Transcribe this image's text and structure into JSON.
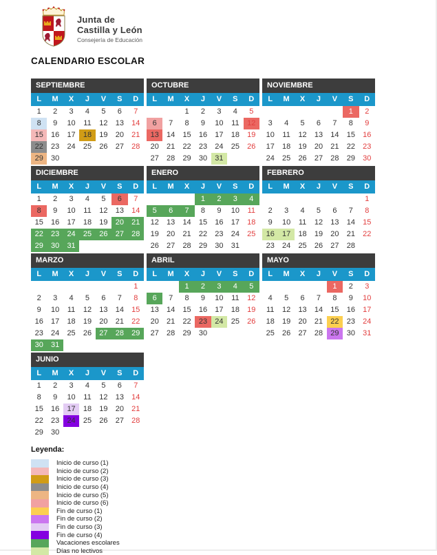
{
  "header": {
    "org_line1": "Junta de",
    "org_line2": "Castilla y León",
    "org_subtitle": "Consejería de Educación",
    "page_title": "CALENDARIO ESCOLAR"
  },
  "colors": {
    "month_header_bg": "#3d3d3d",
    "weekday_bg": "#1b97ca",
    "day_text": "#333333",
    "sunday_text": "#e23d3d",
    "inicio1": "#cfe2f3",
    "inicio2": "#f4b8b8",
    "inicio3": "#d19c16",
    "inicio4": "#8c8c8c",
    "inicio5": "#edb583",
    "inicio6": "#f1a1a1",
    "fin1": "#fccf50",
    "fin2": "#cb76ef",
    "fin3": "#e3ccf4",
    "fin4": "#8400e0",
    "vacaciones": "#57a65a",
    "nolectivos": "#d3e8a5",
    "festivo": "#eb6862"
  },
  "calendar": {
    "weekday_labels": [
      "L",
      "M",
      "X",
      "J",
      "V",
      "S",
      "D"
    ],
    "months": [
      {
        "name": "SEPTIEMBRE",
        "weeks": [
          [
            1,
            2,
            3,
            4,
            5,
            6,
            7
          ],
          [
            {
              "d": 8,
              "bg": "inicio1"
            },
            9,
            10,
            11,
            12,
            13,
            14
          ],
          [
            {
              "d": 15,
              "bg": "inicio2"
            },
            16,
            17,
            {
              "d": 18,
              "bg": "inicio3"
            },
            19,
            20,
            21
          ],
          [
            {
              "d": 22,
              "bg": "inicio4"
            },
            23,
            24,
            25,
            26,
            27,
            28
          ],
          [
            {
              "d": 29,
              "bg": "inicio5"
            },
            30,
            0,
            0,
            0,
            0,
            0
          ]
        ]
      },
      {
        "name": "OCTUBRE",
        "weeks": [
          [
            0,
            0,
            1,
            2,
            3,
            4,
            5
          ],
          [
            {
              "d": 6,
              "bg": "inicio6"
            },
            7,
            8,
            9,
            10,
            11,
            {
              "d": 12,
              "bg": "festivo"
            }
          ],
          [
            {
              "d": 13,
              "bg": "festivo"
            },
            14,
            15,
            16,
            17,
            18,
            19
          ],
          [
            20,
            21,
            22,
            23,
            24,
            25,
            26
          ],
          [
            27,
            28,
            29,
            30,
            {
              "d": 31,
              "bg": "nolectivos"
            },
            0,
            0
          ]
        ]
      },
      {
        "name": "NOVIEMBRE",
        "weeks": [
          [
            0,
            0,
            0,
            0,
            0,
            {
              "d": 1,
              "bg": "festivo",
              "fg": "#ffffff"
            },
            2
          ],
          [
            3,
            4,
            5,
            6,
            7,
            8,
            9
          ],
          [
            10,
            11,
            12,
            13,
            14,
            15,
            16
          ],
          [
            17,
            18,
            19,
            20,
            21,
            22,
            23
          ],
          [
            24,
            25,
            26,
            27,
            28,
            29,
            30
          ]
        ]
      },
      {
        "name": "DICIEMBRE",
        "weeks": [
          [
            1,
            2,
            3,
            4,
            5,
            {
              "d": 6,
              "bg": "festivo"
            },
            7
          ],
          [
            {
              "d": 8,
              "bg": "festivo"
            },
            9,
            10,
            11,
            12,
            13,
            14
          ],
          [
            15,
            16,
            17,
            18,
            19,
            {
              "d": 20,
              "bg": "vacaciones",
              "fg": "#ffffff"
            },
            {
              "d": 21,
              "bg": "vacaciones",
              "fg": "#ffffff"
            }
          ],
          [
            {
              "d": 22,
              "bg": "vacaciones",
              "fg": "#ffffff"
            },
            {
              "d": 23,
              "bg": "vacaciones",
              "fg": "#ffffff"
            },
            {
              "d": 24,
              "bg": "vacaciones",
              "fg": "#ffffff"
            },
            {
              "d": 25,
              "bg": "vacaciones",
              "fg": "#ffffff"
            },
            {
              "d": 26,
              "bg": "vacaciones",
              "fg": "#ffffff"
            },
            {
              "d": 27,
              "bg": "vacaciones",
              "fg": "#ffffff"
            },
            {
              "d": 28,
              "bg": "vacaciones",
              "fg": "#ffffff"
            }
          ],
          [
            {
              "d": 29,
              "bg": "vacaciones",
              "fg": "#ffffff"
            },
            {
              "d": 30,
              "bg": "vacaciones",
              "fg": "#ffffff"
            },
            {
              "d": 31,
              "bg": "vacaciones",
              "fg": "#ffffff"
            },
            0,
            0,
            0,
            0
          ]
        ]
      },
      {
        "name": "ENERO",
        "weeks": [
          [
            0,
            0,
            0,
            {
              "d": 1,
              "bg": "vacaciones",
              "fg": "#ffffff"
            },
            {
              "d": 2,
              "bg": "vacaciones",
              "fg": "#ffffff"
            },
            {
              "d": 3,
              "bg": "vacaciones",
              "fg": "#ffffff"
            },
            {
              "d": 4,
              "bg": "vacaciones",
              "fg": "#ffffff"
            }
          ],
          [
            {
              "d": 5,
              "bg": "vacaciones",
              "fg": "#ffffff"
            },
            {
              "d": 6,
              "bg": "vacaciones",
              "fg": "#ffffff"
            },
            {
              "d": 7,
              "bg": "vacaciones",
              "fg": "#ffffff"
            },
            8,
            9,
            10,
            11
          ],
          [
            12,
            13,
            14,
            15,
            16,
            17,
            18
          ],
          [
            19,
            20,
            21,
            22,
            23,
            24,
            25
          ],
          [
            26,
            27,
            28,
            29,
            30,
            31,
            0
          ]
        ]
      },
      {
        "name": "FEBRERO",
        "weeks": [
          [
            0,
            0,
            0,
            0,
            0,
            0,
            1
          ],
          [
            2,
            3,
            4,
            5,
            6,
            7,
            8
          ],
          [
            9,
            10,
            11,
            12,
            13,
            14,
            15
          ],
          [
            {
              "d": 16,
              "bg": "nolectivos"
            },
            {
              "d": 17,
              "bg": "nolectivos"
            },
            18,
            19,
            20,
            21,
            22
          ],
          [
            23,
            24,
            25,
            26,
            27,
            28,
            0
          ]
        ]
      },
      {
        "name": "MARZO",
        "weeks": [
          [
            0,
            0,
            0,
            0,
            0,
            0,
            1
          ],
          [
            2,
            3,
            4,
            5,
            6,
            7,
            8
          ],
          [
            9,
            10,
            11,
            12,
            13,
            14,
            15
          ],
          [
            16,
            17,
            18,
            19,
            20,
            21,
            22
          ],
          [
            23,
            24,
            25,
            26,
            {
              "d": 27,
              "bg": "vacaciones",
              "fg": "#ffffff"
            },
            {
              "d": 28,
              "bg": "vacaciones",
              "fg": "#ffffff"
            },
            {
              "d": 29,
              "bg": "vacaciones",
              "fg": "#ffffff"
            }
          ],
          [
            {
              "d": 30,
              "bg": "vacaciones",
              "fg": "#ffffff"
            },
            {
              "d": 31,
              "bg": "vacaciones",
              "fg": "#ffffff"
            },
            0,
            0,
            0,
            0,
            0
          ]
        ]
      },
      {
        "name": "ABRIL",
        "weeks": [
          [
            0,
            0,
            {
              "d": 1,
              "bg": "vacaciones",
              "fg": "#ffffff"
            },
            {
              "d": 2,
              "bg": "vacaciones",
              "fg": "#ffffff"
            },
            {
              "d": 3,
              "bg": "vacaciones",
              "fg": "#ffffff"
            },
            {
              "d": 4,
              "bg": "vacaciones",
              "fg": "#ffffff"
            },
            {
              "d": 5,
              "bg": "vacaciones",
              "fg": "#ffffff"
            }
          ],
          [
            {
              "d": 6,
              "bg": "vacaciones",
              "fg": "#ffffff"
            },
            7,
            8,
            9,
            10,
            11,
            12
          ],
          [
            13,
            14,
            15,
            16,
            17,
            18,
            19
          ],
          [
            20,
            21,
            22,
            {
              "d": 23,
              "bg": "festivo"
            },
            {
              "d": 24,
              "bg": "nolectivos"
            },
            25,
            26
          ],
          [
            27,
            28,
            29,
            30,
            0,
            0,
            0
          ]
        ]
      },
      {
        "name": "MAYO",
        "weeks": [
          [
            0,
            0,
            0,
            0,
            {
              "d": 1,
              "bg": "festivo",
              "fg": "#ffffff"
            },
            2,
            3
          ],
          [
            4,
            5,
            6,
            7,
            8,
            9,
            10
          ],
          [
            11,
            12,
            13,
            14,
            15,
            16,
            17
          ],
          [
            18,
            19,
            20,
            21,
            {
              "d": 22,
              "bg": "fin1"
            },
            23,
            24
          ],
          [
            25,
            26,
            27,
            28,
            {
              "d": 29,
              "bg": "fin2"
            },
            30,
            31
          ]
        ]
      },
      {
        "name": "JUNIO",
        "weeks": [
          [
            1,
            2,
            3,
            4,
            5,
            6,
            7
          ],
          [
            8,
            9,
            10,
            11,
            12,
            13,
            14
          ],
          [
            15,
            16,
            {
              "d": 17,
              "bg": "fin3"
            },
            18,
            19,
            20,
            21
          ],
          [
            22,
            23,
            {
              "d": 24,
              "bg": "fin4"
            },
            25,
            26,
            27,
            28
          ],
          [
            29,
            30,
            0,
            0,
            0,
            0,
            0
          ]
        ]
      }
    ]
  },
  "legend": {
    "title": "Leyenda:",
    "items": [
      {
        "label": "Inicio de curso (1)",
        "color": "inicio1"
      },
      {
        "label": "Inicio de curso (2)",
        "color": "inicio2"
      },
      {
        "label": "Inicio de curso (3)",
        "color": "inicio3"
      },
      {
        "label": "Inicio de curso (4)",
        "color": "inicio4"
      },
      {
        "label": "Inicio de curso (5)",
        "color": "inicio5"
      },
      {
        "label": "Inicio de curso (6)",
        "color": "inicio6"
      },
      {
        "label": "Fin de curso (1)",
        "color": "fin1"
      },
      {
        "label": "Fin de curso (2)",
        "color": "fin2"
      },
      {
        "label": "Fin de curso (3)",
        "color": "fin3"
      },
      {
        "label": "Fin de curso (4)",
        "color": "fin4"
      },
      {
        "label": "Vacaciones escolares",
        "color": "vacaciones"
      },
      {
        "label": "Días no lectivos",
        "color": "nolectivos"
      }
    ]
  }
}
